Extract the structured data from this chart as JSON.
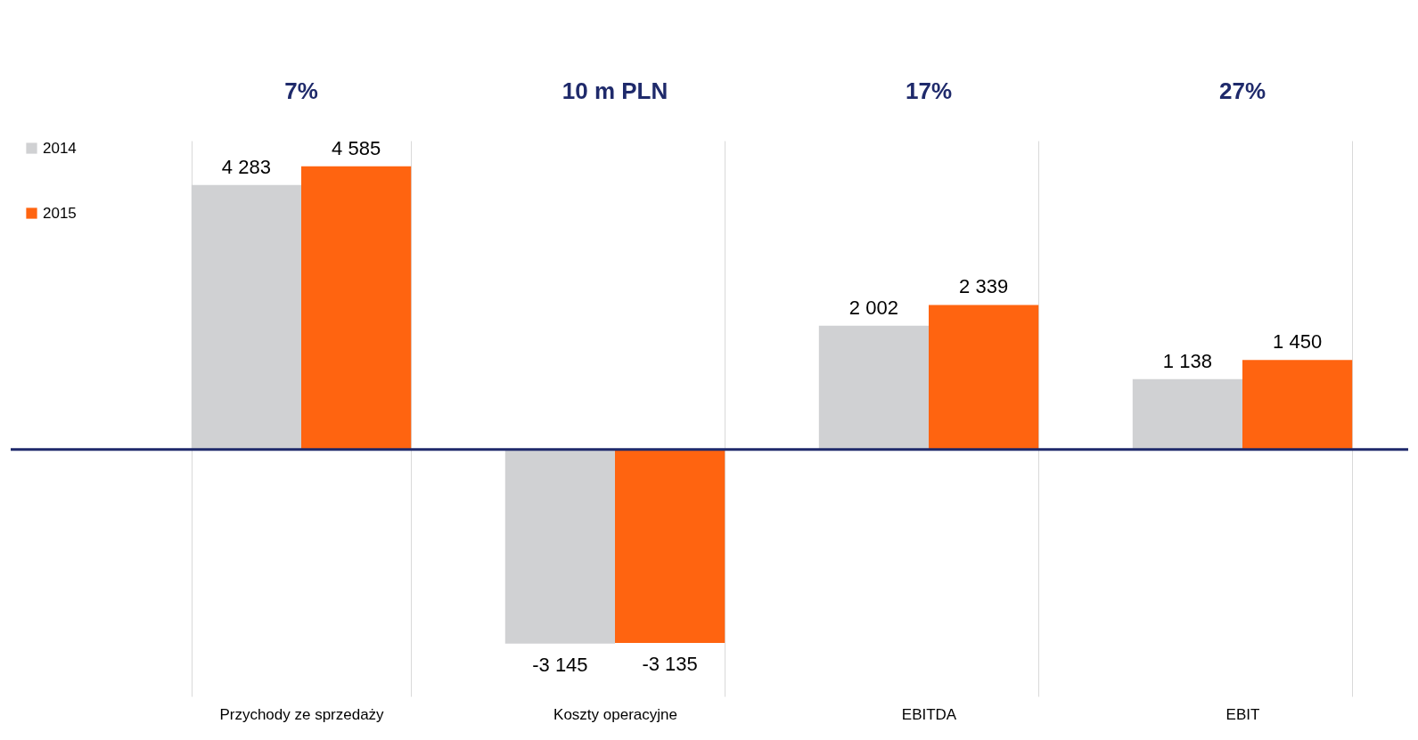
{
  "chart_data": {
    "type": "bar",
    "categories": [
      "Przychody ze sprzedaży",
      "Koszty operacyjne",
      "EBITDA",
      "EBIT"
    ],
    "series": [
      {
        "name": "2014",
        "color": "#d0d1d3",
        "values": [
          4283,
          -3145,
          2002,
          1138
        ],
        "value_labels": [
          "4 283",
          "-3 145",
          "2 002",
          "1 138"
        ]
      },
      {
        "name": "2015",
        "color": "#ff6410",
        "values": [
          4585,
          -3135,
          2339,
          1450
        ],
        "value_labels": [
          "4 585",
          "-3 135",
          "2 339",
          "1 450"
        ]
      }
    ],
    "ylim": [
      -4000,
      5000
    ],
    "tick_labels": "x",
    "grid": "x",
    "legend": "left",
    "ref_lines": [
      {
        "axis": "y",
        "value": 0,
        "color": "#1f2a6b"
      }
    ],
    "annotations": [
      "7%",
      "10 m PLN",
      "17%",
      "27%"
    ]
  }
}
